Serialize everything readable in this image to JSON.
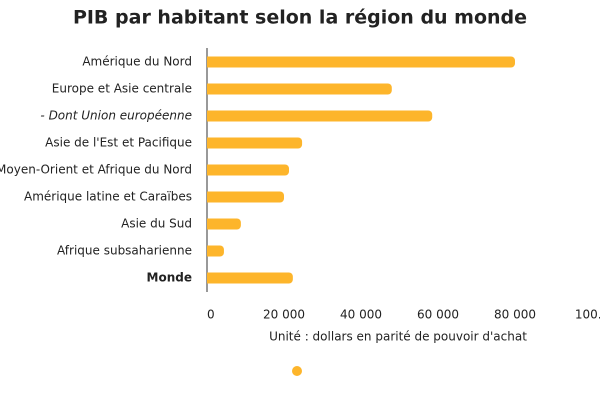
{
  "chart_data": {
    "type": "hbar",
    "title": "PIB par habitant selon la région du monde",
    "categories": [
      "Amérique du Nord",
      "Europe et Asie centrale",
      "- Dont Union européenne",
      "Asie de l'Est et Pacifique",
      "Moyen-Orient et Afrique du Nord",
      "Amérique latine et Caraïbes",
      "Asie du Sud",
      "Afrique subsaharienne",
      "Monde"
    ],
    "category_styles": [
      "normal",
      "normal",
      "italic",
      "normal",
      "normal",
      "normal",
      "normal",
      "normal",
      "bold"
    ],
    "values": [
      80000,
      48000,
      58500,
      24700,
      21300,
      20000,
      8800,
      4400,
      22300
    ],
    "color": "#fdb52b",
    "xlabel": "Unité : dollars en parité de pouvoir d'achat",
    "xlim": [
      0,
      100000
    ],
    "xticks": [
      0,
      {
        "value": 20000,
        "label": "20 000"
      },
      {
        "value": 40000,
        "label": "40 000"
      },
      {
        "value": 60000,
        "label": "60 000"
      },
      {
        "value": 80000,
        "label": "80 000"
      },
      {
        "value": 100000,
        "label": "100..."
      }
    ],
    "legend": "bottom"
  }
}
